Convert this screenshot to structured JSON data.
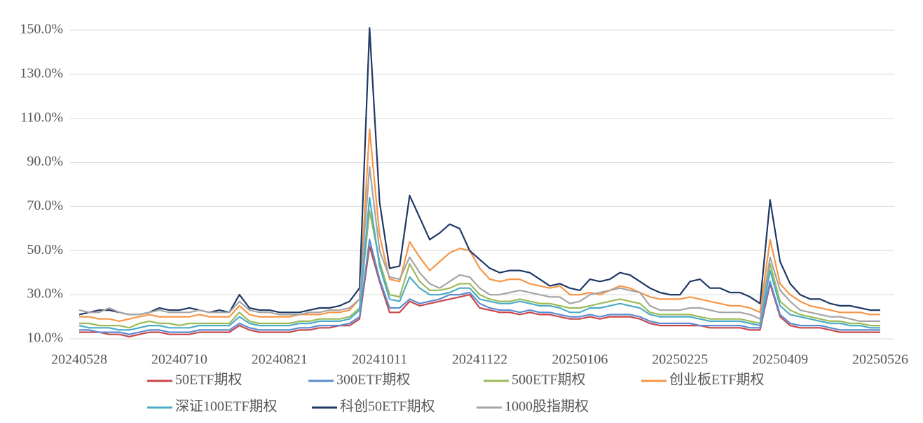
{
  "chart_data": {
    "type": "line",
    "categories": [
      "20240528",
      null,
      null,
      null,
      null,
      null,
      null,
      null,
      null,
      null,
      "20240710",
      null,
      null,
      null,
      null,
      null,
      null,
      null,
      null,
      null,
      "20240821",
      null,
      null,
      null,
      null,
      null,
      null,
      null,
      null,
      null,
      "20241011",
      null,
      null,
      null,
      null,
      null,
      null,
      null,
      null,
      null,
      "20241122",
      null,
      null,
      null,
      null,
      null,
      null,
      null,
      null,
      null,
      "20250106",
      null,
      null,
      null,
      null,
      null,
      null,
      null,
      null,
      null,
      "20250225",
      null,
      null,
      null,
      null,
      null,
      null,
      null,
      null,
      null,
      "20250409",
      null,
      null,
      null,
      null,
      null,
      null,
      null,
      null,
      null,
      "20250526"
    ],
    "ylim": [
      10,
      150
    ],
    "yticks": [
      {
        "value": 10,
        "label": "10.0%"
      },
      {
        "value": 30,
        "label": "30.0%"
      },
      {
        "value": 50,
        "label": "50.0%"
      },
      {
        "value": 70,
        "label": "70.0%"
      },
      {
        "value": 90,
        "label": "90.0%"
      },
      {
        "value": 110,
        "label": "110.0%"
      },
      {
        "value": 130,
        "label": "130.0%"
      },
      {
        "value": 150,
        "label": "150.0%"
      }
    ],
    "grid": true,
    "legend": "bottom",
    "series": [
      {
        "name": "50ETF期权",
        "color": "#c9474a",
        "values": [
          13,
          13,
          13,
          12,
          12,
          11,
          12,
          13,
          13,
          12,
          12,
          12,
          13,
          13,
          13,
          13,
          16,
          14,
          13,
          13,
          13,
          13,
          14,
          14,
          15,
          15,
          16,
          16,
          19,
          52,
          36,
          22,
          22,
          27,
          25,
          26,
          27,
          28,
          29,
          30,
          24,
          23,
          22,
          22,
          21,
          22,
          21,
          21,
          20,
          19,
          19,
          20,
          19,
          20,
          20,
          20,
          19,
          17,
          16,
          16,
          16,
          16,
          16,
          15,
          15,
          15,
          15,
          14,
          14,
          35,
          20,
          16,
          15,
          15,
          15,
          14,
          13,
          13,
          13,
          13,
          13
        ]
      },
      {
        "name": "300ETF期权",
        "color": "#5b8bd0",
        "values": [
          14,
          14,
          13,
          13,
          13,
          12,
          13,
          14,
          14,
          13,
          13,
          13,
          14,
          14,
          14,
          14,
          17,
          15,
          14,
          14,
          14,
          14,
          15,
          15,
          16,
          16,
          16,
          17,
          20,
          55,
          37,
          24,
          24,
          28,
          26,
          27,
          28,
          30,
          30,
          31,
          26,
          24,
          23,
          23,
          22,
          23,
          22,
          22,
          21,
          20,
          20,
          21,
          20,
          21,
          21,
          21,
          20,
          18,
          17,
          17,
          17,
          17,
          16,
          16,
          16,
          16,
          16,
          15,
          15,
          36,
          21,
          17,
          16,
          16,
          16,
          15,
          14,
          14,
          14,
          14,
          14
        ]
      },
      {
        "name": "500ETF期权",
        "color": "#9bbb59",
        "values": [
          17,
          17,
          16,
          16,
          16,
          15,
          17,
          18,
          17,
          17,
          16,
          17,
          17,
          17,
          17,
          17,
          22,
          18,
          17,
          17,
          17,
          17,
          18,
          18,
          19,
          19,
          19,
          20,
          24,
          68,
          45,
          30,
          29,
          44,
          36,
          32,
          32,
          33,
          35,
          35,
          30,
          28,
          27,
          27,
          28,
          27,
          26,
          26,
          25,
          24,
          24,
          25,
          26,
          27,
          28,
          27,
          26,
          22,
          21,
          21,
          21,
          21,
          20,
          19,
          19,
          19,
          19,
          18,
          17,
          44,
          27,
          23,
          21,
          20,
          19,
          18,
          18,
          17,
          17,
          16,
          16
        ]
      },
      {
        "name": "创业板ETF期权",
        "color": "#f79646",
        "values": [
          20,
          20,
          19,
          19,
          18,
          19,
          20,
          21,
          20,
          20,
          20,
          20,
          21,
          20,
          20,
          20,
          25,
          21,
          20,
          20,
          20,
          20,
          21,
          21,
          21,
          22,
          22,
          23,
          28,
          105,
          57,
          37,
          36,
          54,
          47,
          41,
          45,
          49,
          51,
          50,
          42,
          37,
          36,
          37,
          37,
          35,
          34,
          33,
          34,
          30,
          30,
          31,
          30,
          32,
          34,
          33,
          31,
          29,
          28,
          28,
          28,
          29,
          28,
          27,
          26,
          25,
          25,
          24,
          22,
          55,
          35,
          30,
          27,
          25,
          24,
          23,
          22,
          22,
          22,
          21,
          21
        ]
      },
      {
        "name": "深证100ETF期权",
        "color": "#4bacc6",
        "values": [
          16,
          15,
          15,
          15,
          14,
          14,
          15,
          16,
          16,
          15,
          15,
          15,
          16,
          16,
          16,
          16,
          20,
          17,
          16,
          16,
          16,
          16,
          17,
          17,
          18,
          18,
          18,
          19,
          23,
          74,
          43,
          28,
          27,
          38,
          33,
          30,
          30,
          31,
          33,
          33,
          28,
          27,
          26,
          26,
          27,
          26,
          25,
          25,
          24,
          22,
          22,
          24,
          24,
          25,
          26,
          25,
          24,
          21,
          20,
          20,
          20,
          20,
          19,
          18,
          18,
          18,
          18,
          17,
          16,
          41,
          25,
          21,
          20,
          19,
          18,
          17,
          17,
          16,
          16,
          15,
          15
        ]
      },
      {
        "name": "科创50ETF期权",
        "color": "#1f3864",
        "values": [
          21,
          22,
          23,
          23,
          22,
          21,
          21,
          22,
          24,
          23,
          23,
          24,
          23,
          22,
          23,
          22,
          30,
          24,
          23,
          23,
          22,
          22,
          22,
          23,
          24,
          24,
          25,
          27,
          33,
          151,
          72,
          42,
          43,
          75,
          65,
          55,
          58,
          62,
          60,
          50,
          46,
          42,
          40,
          41,
          41,
          40,
          37,
          34,
          35,
          33,
          32,
          37,
          36,
          37,
          40,
          39,
          36,
          33,
          31,
          30,
          30,
          36,
          37,
          33,
          33,
          31,
          31,
          29,
          26,
          73,
          45,
          35,
          30,
          28,
          28,
          26,
          25,
          25,
          24,
          23,
          23
        ]
      },
      {
        "name": "1000股指期权",
        "color": "#a5a5a5",
        "values": [
          23,
          22,
          22,
          24,
          22,
          21,
          21,
          22,
          23,
          22,
          22,
          22,
          23,
          22,
          22,
          22,
          27,
          23,
          22,
          22,
          21,
          21,
          21,
          22,
          22,
          23,
          23,
          24,
          28,
          88,
          50,
          38,
          37,
          47,
          40,
          35,
          33,
          36,
          39,
          38,
          33,
          30,
          30,
          31,
          32,
          31,
          30,
          29,
          29,
          26,
          27,
          30,
          31,
          32,
          33,
          32,
          31,
          25,
          23,
          23,
          23,
          24,
          24,
          23,
          22,
          22,
          22,
          21,
          19,
          47,
          32,
          27,
          23,
          22,
          21,
          20,
          20,
          19,
          18,
          18,
          18
        ]
      }
    ]
  }
}
